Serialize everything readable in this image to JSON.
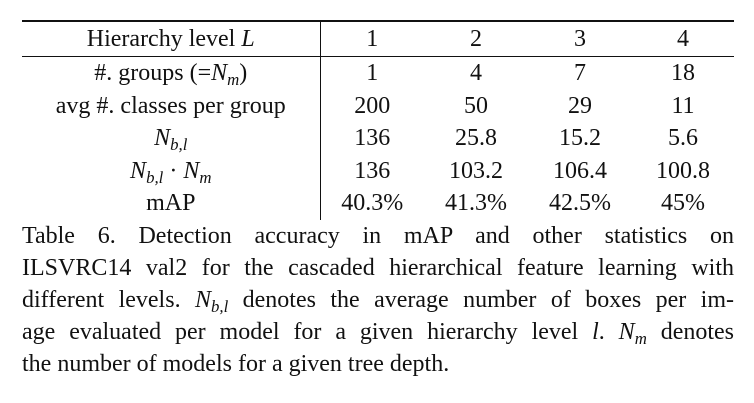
{
  "table": {
    "header": {
      "label": "Hierarchy level",
      "label_var": "L",
      "levels": [
        "1",
        "2",
        "3",
        "4"
      ]
    },
    "rows": [
      {
        "label_pre": "#. groups (=",
        "label_var": "N",
        "label_sub": "m",
        "label_post": ")",
        "values": [
          "1",
          "4",
          "7",
          "18"
        ]
      },
      {
        "label_pre": "avg #. classes per group",
        "values": [
          "200",
          "50",
          "29",
          "11"
        ]
      },
      {
        "label_var": "N",
        "label_sub": "b,l",
        "values": [
          "136",
          "25.8",
          "15.2",
          "5.6"
        ]
      },
      {
        "label_var": "N",
        "label_sub": "b,l",
        "label_mid": " · ",
        "label_var2": "N",
        "label_sub2": "m",
        "values": [
          "136",
          "103.2",
          "106.4",
          "100.8"
        ]
      },
      {
        "label_pre": "mAP",
        "values": [
          "40.3%",
          "41.3%",
          "42.5%",
          "45%"
        ]
      }
    ]
  },
  "caption": {
    "line1": "Table 6. Detection accuracy in mAP and other statistics on",
    "line2": "ILSVRC14 val2 for the cascaded hierarchical feature learning with",
    "line3a": "different levels.",
    "line3_var": "N",
    "line3_sub": "b,l",
    "line3b": "denotes the average number of boxes per im-",
    "line4a": "age evaluated per model for a given hierarchy level",
    "line4_var": "l",
    "line4b": ".",
    "line4_var2": "N",
    "line4_sub2": "m",
    "line4c": "denotes",
    "line5": "the number of models for a given tree depth."
  }
}
